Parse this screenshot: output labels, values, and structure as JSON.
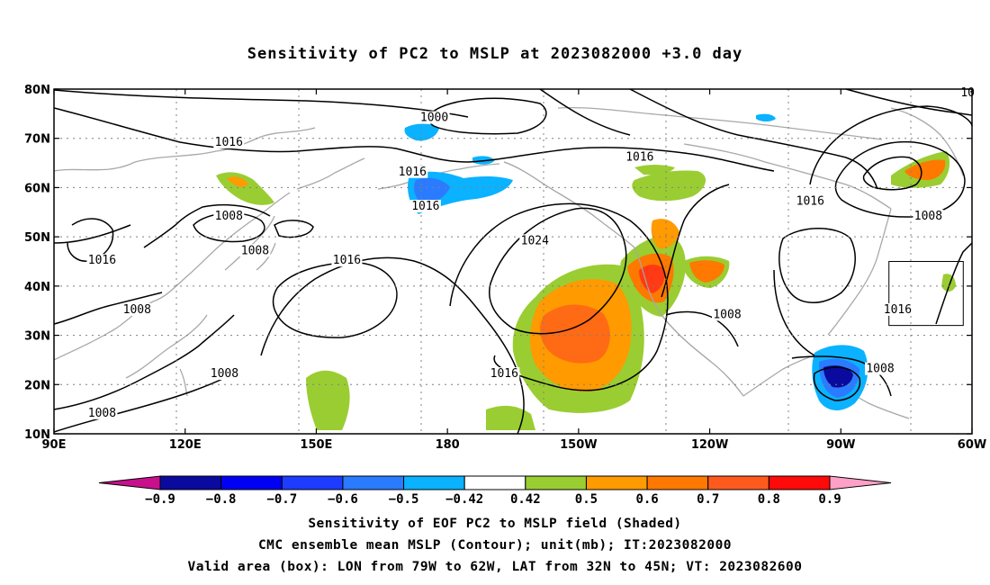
{
  "title": "Sensitivity of PC2 to MSLP at 2023082000 +3.0 day",
  "map": {
    "lat_labels": [
      "80N",
      "70N",
      "60N",
      "50N",
      "40N",
      "30N",
      "20N",
      "10N"
    ],
    "lon_labels": [
      "90E",
      "120E",
      "150E",
      "180",
      "150W",
      "120W",
      "90W",
      "60W"
    ],
    "lon_range": [
      90,
      300
    ],
    "lat_range": [
      10,
      80
    ],
    "contour_labels": [
      {
        "text": "1000",
        "lon": 177,
        "lat": 73.5
      },
      {
        "text": "1016",
        "lon": 130,
        "lat": 68.5
      },
      {
        "text": "1016",
        "lon": 172,
        "lat": 62.5
      },
      {
        "text": "1016",
        "lon": 224,
        "lat": 65.5
      },
      {
        "text": "1016",
        "lon": 175,
        "lat": 55.5
      },
      {
        "text": "1016",
        "lon": 263,
        "lat": 56.5
      },
      {
        "text": "1008",
        "lon": 130,
        "lat": 53.5
      },
      {
        "text": "1008",
        "lon": 136,
        "lat": 46.5
      },
      {
        "text": "1016",
        "lon": 101,
        "lat": 44.5
      },
      {
        "text": "1016",
        "lon": 157,
        "lat": 44.5
      },
      {
        "text": "1024",
        "lon": 200,
        "lat": 48.5
      },
      {
        "text": "1008",
        "lon": 109,
        "lat": 34.5
      },
      {
        "text": "1008",
        "lon": 244,
        "lat": 33.5
      },
      {
        "text": "1016",
        "lon": 283,
        "lat": 34.5
      },
      {
        "text": "1008",
        "lon": 290,
        "lat": 53.5
      },
      {
        "text": "1008",
        "lon": 129,
        "lat": 21.5
      },
      {
        "text": "1016",
        "lon": 193,
        "lat": 21.5
      },
      {
        "text": "1008",
        "lon": 279,
        "lat": 22.5
      },
      {
        "text": "1008",
        "lon": 101,
        "lat": 13.5
      },
      {
        "text": "10",
        "lon": 299,
        "lat": 78.5
      }
    ],
    "valid_box": {
      "lon_min": 281,
      "lon_max": 298,
      "lat_min": 32,
      "lat_max": 45
    }
  },
  "colorbar": {
    "labels": [
      "-0.9",
      "-0.8",
      "-0.7",
      "-0.6",
      "-0.5",
      "-0.42",
      "0.42",
      "0.5",
      "0.6",
      "0.7",
      "0.8",
      "0.9"
    ],
    "colors": [
      "#0a0a9e",
      "#0000f5",
      "#1e3cff",
      "#2a7bff",
      "#0ab2ff",
      "#ffffff",
      "#9acd32",
      "#ff9a00",
      "#ff7800",
      "#ff5a1e",
      "#ff0a0a"
    ],
    "low_end_color": "#c8108c",
    "high_end_color": "#ffa0c8"
  },
  "captions": [
    "Sensitivity of EOF PC2 to MSLP field (Shaded)",
    "CMC ensemble mean MSLP (Contour); unit(mb); IT:2023082000",
    "Valid area (box): LON from 79W to 62W, LAT from 32N to 45N; VT: 2023082600"
  ]
}
